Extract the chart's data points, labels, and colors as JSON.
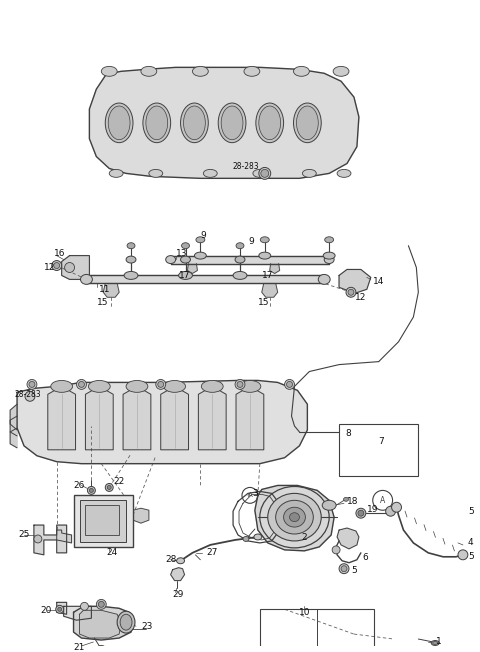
{
  "bg_color": "#ffffff",
  "line_color": "#404040",
  "dashed_color": "#606060",
  "fig_width": 4.8,
  "fig_height": 6.52,
  "dpi": 100
}
